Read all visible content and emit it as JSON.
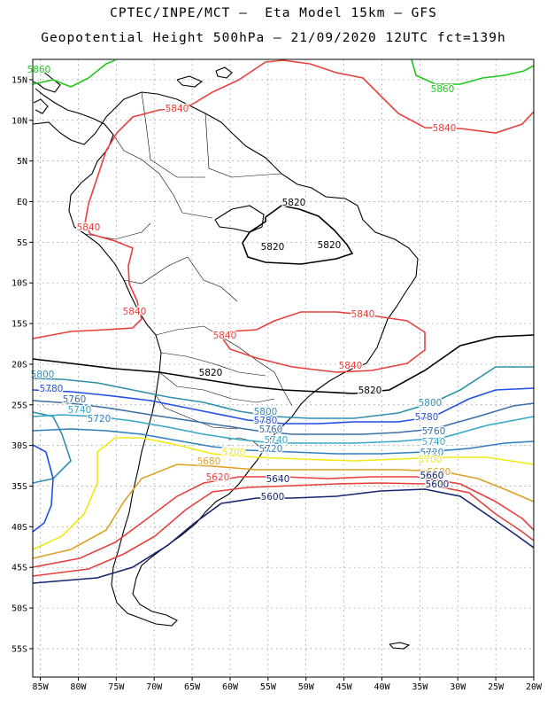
{
  "title": {
    "line1": "CPTEC/INPE/MCT –  Eta Model 15km – GFS",
    "line2": "Geopotential Height 500hPa – 21/09/2020 12UTC fct=139h"
  },
  "map": {
    "lat_labels": [
      "15N",
      "10N",
      "5N",
      "EQ",
      "5S",
      "10S",
      "15S",
      "20S",
      "25S",
      "30S",
      "35S",
      "40S",
      "45S",
      "50S",
      "55S"
    ],
    "lon_labels": [
      "85W",
      "80W",
      "75W",
      "70W",
      "65W",
      "60W",
      "55W",
      "50W",
      "45W",
      "40W",
      "35W",
      "30W",
      "25W",
      "20W"
    ],
    "lat_range": [
      17.5,
      -58.5
    ],
    "lon_range": [
      -86,
      -20
    ]
  },
  "contours": [
    {
      "value": "5860",
      "color": "#1ec81e"
    },
    {
      "value": "5840",
      "color": "#e8403c"
    },
    {
      "value": "5820",
      "color": "#000000"
    },
    {
      "value": "5800",
      "color": "#2f8fb0"
    },
    {
      "value": "5780",
      "color": "#1f4fe8"
    },
    {
      "value": "5760",
      "color": "#3a6fa8"
    },
    {
      "value": "5740",
      "color": "#35a8c8"
    },
    {
      "value": "5720",
      "color": "#2e7fc0"
    },
    {
      "value": "5700",
      "color": "#f0ea10"
    },
    {
      "value": "5680",
      "color": "#e0a020"
    },
    {
      "value": "5660",
      "color": "#e8403c"
    },
    {
      "value": "5620",
      "color": "#e8403c"
    },
    {
      "value": "5600",
      "color": "#14246e"
    }
  ],
  "contour_labels": [
    {
      "text": "5860"
    },
    {
      "text": "5860"
    },
    {
      "text": "5840"
    },
    {
      "text": "5840"
    },
    {
      "text": "5840"
    },
    {
      "text": "5840"
    },
    {
      "text": "5840"
    },
    {
      "text": "5840"
    },
    {
      "text": "5840"
    },
    {
      "text": "5820"
    },
    {
      "text": "5820"
    },
    {
      "text": "5820"
    },
    {
      "text": "5820"
    },
    {
      "text": "5820"
    },
    {
      "text": "5800"
    },
    {
      "text": "5800"
    },
    {
      "text": "5800"
    },
    {
      "text": "5780"
    },
    {
      "text": "5780"
    },
    {
      "text": "5780"
    },
    {
      "text": "5760"
    },
    {
      "text": "5760"
    },
    {
      "text": "5760"
    },
    {
      "text": "5740"
    },
    {
      "text": "5740"
    },
    {
      "text": "5740"
    },
    {
      "text": "5720"
    },
    {
      "text": "5720"
    },
    {
      "text": "5720"
    },
    {
      "text": "5700"
    },
    {
      "text": "5700"
    },
    {
      "text": "5680"
    },
    {
      "text": "5680"
    },
    {
      "text": "5660"
    },
    {
      "text": "5640"
    },
    {
      "text": "5620"
    },
    {
      "text": "5600"
    },
    {
      "text": "5600"
    }
  ]
}
